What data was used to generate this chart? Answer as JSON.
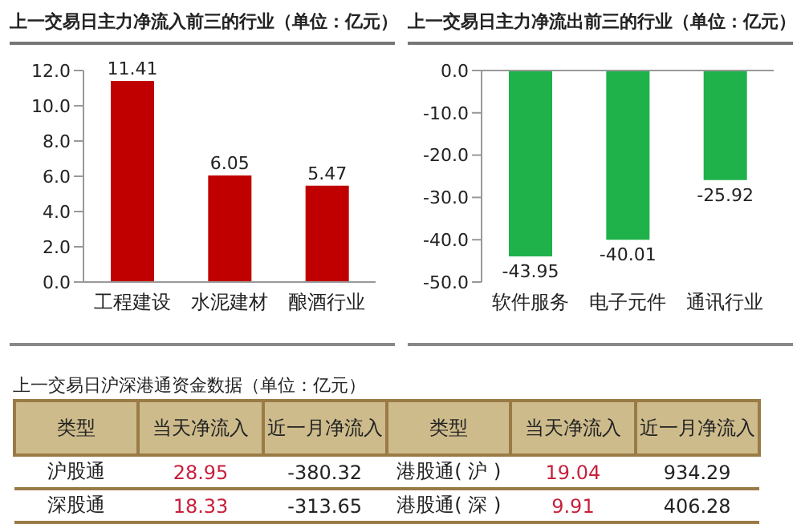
{
  "chart_data": [
    {
      "type": "bar",
      "title": "上一交易日主力净流入前三的行业（单位：亿元）",
      "categories": [
        "工程建设",
        "水泥建材",
        "酿酒行业"
      ],
      "values": [
        11.41,
        6.05,
        5.47
      ],
      "color": "#c00000",
      "ylim": [
        0,
        12
      ],
      "yticks": [
        {
          "value": 0,
          "label": "0.0"
        },
        {
          "value": 2,
          "label": "2.0"
        },
        {
          "value": 4,
          "label": "4.0"
        },
        {
          "value": 6,
          "label": "6.0"
        },
        {
          "value": 8,
          "label": "8.0"
        },
        {
          "value": 10,
          "label": "10.0"
        },
        {
          "value": 12,
          "label": "12.0"
        }
      ],
      "data_labels": true,
      "grid": false,
      "legend": false
    },
    {
      "type": "bar",
      "title": "上一交易日主力净流出前三的行业（单位：亿元）",
      "categories": [
        "软件服务",
        "电子元件",
        "通讯行业"
      ],
      "values": [
        -43.95,
        -40.01,
        -25.92
      ],
      "color": "#1fb24a",
      "ylim": [
        -50,
        0
      ],
      "yticks": [
        {
          "value": -50,
          "label": "-50.0"
        },
        {
          "value": -40,
          "label": "-40.0"
        },
        {
          "value": -30,
          "label": "-30.0"
        },
        {
          "value": -20,
          "label": "-20.0"
        },
        {
          "value": -10,
          "label": "-10.0"
        },
        {
          "value": 0,
          "label": "0.0"
        }
      ],
      "data_labels": true,
      "grid": false,
      "legend": false
    },
    {
      "type": "other",
      "title": "上一交易日沪深港通资金数据（单位：亿元）",
      "categories": [
        "类型",
        "当天净流入",
        "近一月净流入",
        "类型",
        "当天净流入",
        "近一月净流入"
      ],
      "cell_labels": [
        [
          "沪股通",
          "28.95",
          "-380.32",
          "港股通( 沪 )",
          "19.04",
          "934.29"
        ],
        [
          "深股通",
          "18.33",
          "-313.65",
          "港股通( 深 )",
          "9.91",
          "406.28"
        ]
      ],
      "color": "#cdbb8c"
    }
  ]
}
